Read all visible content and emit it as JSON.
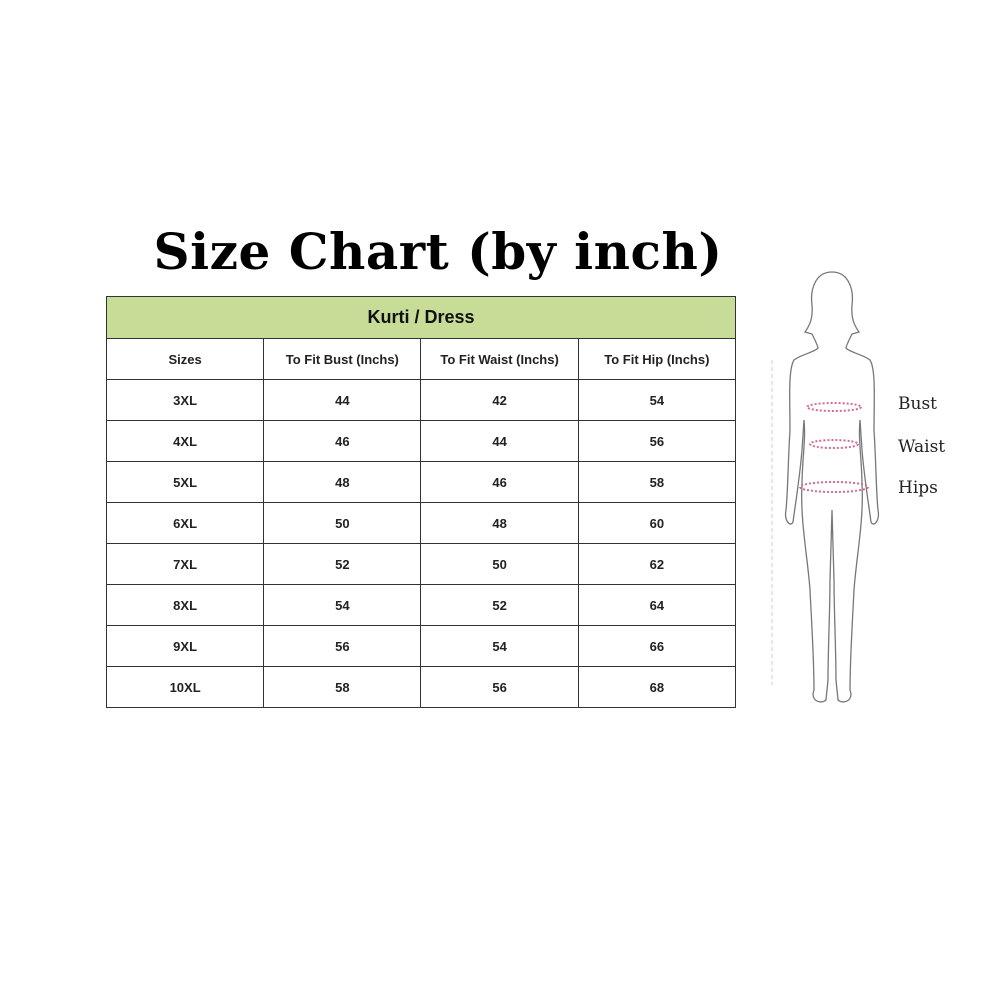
{
  "title": "Size Chart (by inch)",
  "table": {
    "group_header": "Kurti / Dress",
    "columns": [
      "Sizes",
      "To Fit Bust (Inchs)",
      "To Fit Waist (Inchs)",
      "To Fit Hip (Inchs)"
    ],
    "rows": [
      [
        "3XL",
        "44",
        "42",
        "54"
      ],
      [
        "4XL",
        "46",
        "44",
        "56"
      ],
      [
        "5XL",
        "48",
        "46",
        "58"
      ],
      [
        "6XL",
        "50",
        "48",
        "60"
      ],
      [
        "7XL",
        "52",
        "50",
        "62"
      ],
      [
        "8XL",
        "54",
        "52",
        "64"
      ],
      [
        "9XL",
        "56",
        "54",
        "66"
      ],
      [
        "10XL",
        "58",
        "56",
        "68"
      ]
    ]
  },
  "figure": {
    "labels": [
      "Bust",
      "Waist",
      "Hips"
    ],
    "measure_color": "#d46a9a"
  }
}
